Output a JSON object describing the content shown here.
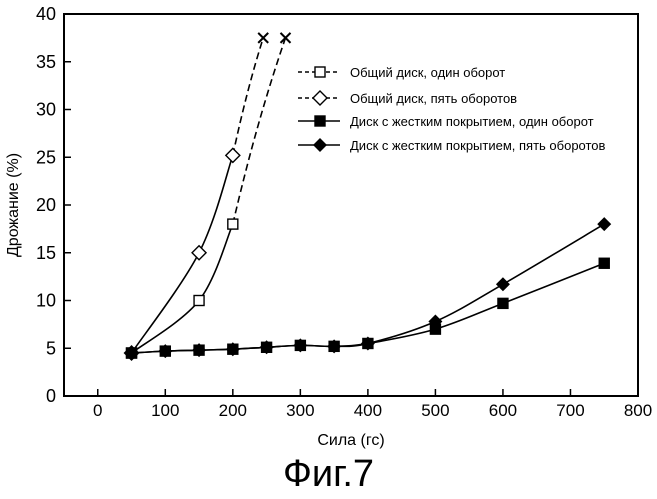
{
  "chart_data": {
    "type": "line",
    "xlabel": "Сила (гс)",
    "ylabel": "Дрожание (%)",
    "xlim": [
      -50,
      800
    ],
    "ylim": [
      0,
      40
    ],
    "xticks": [
      0,
      100,
      200,
      300,
      400,
      500,
      600,
      700,
      800
    ],
    "yticks": [
      0,
      5,
      10,
      15,
      20,
      25,
      30,
      35,
      40
    ],
    "grid": false,
    "legend_position": "top-right",
    "series": [
      {
        "name": "Общий диск, один оборот",
        "marker": "square-open",
        "x": [
          50,
          150,
          200
        ],
        "y": [
          4.5,
          10,
          18
        ],
        "dashed_x": [
          200,
          278
        ],
        "dashed_y": [
          18,
          37.5
        ],
        "end_marker": "x"
      },
      {
        "name": "Общий диск, пять оборотов",
        "marker": "diamond-open",
        "x": [
          50,
          150,
          200
        ],
        "y": [
          4.5,
          15,
          25.2
        ],
        "dashed_x": [
          200,
          245
        ],
        "dashed_y": [
          25.2,
          37.5
        ],
        "end_marker": "x"
      },
      {
        "name": "Диск с жестким покрытием, один оборот",
        "marker": "square-filled",
        "x": [
          50,
          100,
          150,
          200,
          250,
          300,
          350,
          400,
          500,
          600,
          750
        ],
        "y": [
          4.5,
          4.7,
          4.8,
          4.9,
          5.1,
          5.3,
          5.2,
          5.5,
          7.0,
          9.7,
          13.9
        ]
      },
      {
        "name": "Диск с жестким покрытием, пять оборотов",
        "marker": "diamond-filled",
        "x": [
          50,
          100,
          150,
          200,
          250,
          300,
          350,
          400,
          500,
          600,
          750
        ],
        "y": [
          4.5,
          4.7,
          4.8,
          4.9,
          5.1,
          5.3,
          5.2,
          5.5,
          7.8,
          11.7,
          18.0
        ]
      }
    ]
  },
  "figure_caption": "Фиг.7"
}
